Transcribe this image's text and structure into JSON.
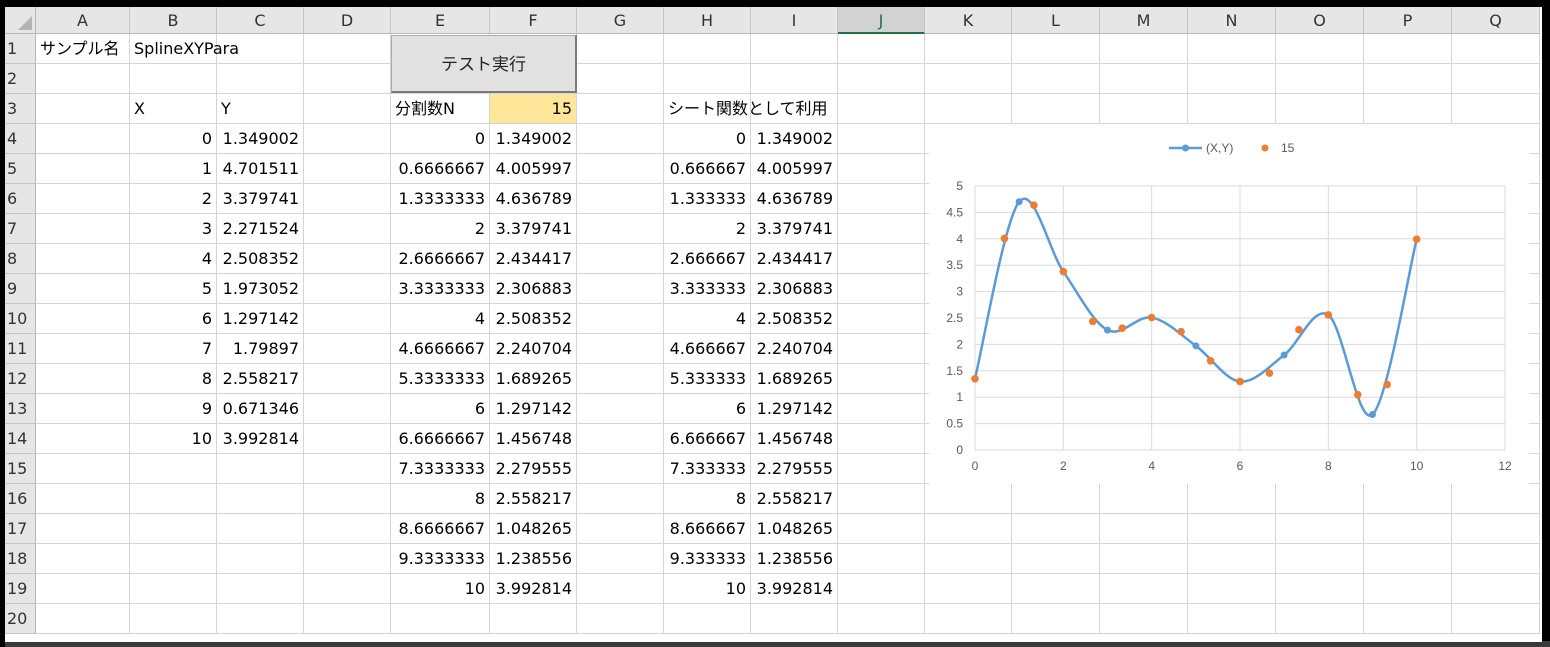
{
  "columns": [
    "A",
    "B",
    "C",
    "D",
    "E",
    "F",
    "G",
    "H",
    "I",
    "J",
    "K",
    "L",
    "M",
    "N",
    "O",
    "P",
    "Q"
  ],
  "selected_column": "J",
  "rows": [
    "1",
    "2",
    "3",
    "4",
    "5",
    "6",
    "7",
    "8",
    "9",
    "10",
    "11",
    "12",
    "13",
    "14",
    "15",
    "16",
    "17",
    "18",
    "19",
    "20"
  ],
  "cells": {
    "A1": "サンプル名",
    "B1": "SplineXYPara",
    "B3": "X",
    "C3": "Y",
    "E3": "分割数N",
    "F3": "15",
    "H3": "シート関数として利用",
    "B": [
      "0",
      "1",
      "2",
      "3",
      "4",
      "5",
      "6",
      "7",
      "8",
      "9",
      "10"
    ],
    "C": [
      "1.349002",
      "4.701511",
      "3.379741",
      "2.271524",
      "2.508352",
      "1.973052",
      "1.297142",
      "1.79897",
      "2.558217",
      "0.671346",
      "3.992814"
    ],
    "E": [
      "0",
      "0.6666667",
      "1.3333333",
      "2",
      "2.6666667",
      "3.3333333",
      "4",
      "4.6666667",
      "5.3333333",
      "6",
      "6.6666667",
      "7.3333333",
      "8",
      "8.6666667",
      "9.3333333",
      "10"
    ],
    "F": [
      "1.349002",
      "4.005997",
      "4.636789",
      "3.379741",
      "2.434417",
      "2.306883",
      "2.508352",
      "2.240704",
      "1.689265",
      "1.297142",
      "1.456748",
      "2.279555",
      "2.558217",
      "1.048265",
      "1.238556",
      "3.992814"
    ],
    "H": [
      "0",
      "0.666667",
      "1.333333",
      "2",
      "2.666667",
      "3.333333",
      "4",
      "4.666667",
      "5.333333",
      "6",
      "6.666667",
      "7.333333",
      "8",
      "8.666667",
      "9.333333",
      "10"
    ],
    "I": [
      "1.349002",
      "4.005997",
      "4.636789",
      "3.379741",
      "2.434417",
      "2.306883",
      "2.508352",
      "2.240704",
      "1.689265",
      "1.297142",
      "1.456748",
      "2.279555",
      "2.558217",
      "1.048265",
      "1.238556",
      "3.992814"
    ]
  },
  "button": {
    "label": "テスト実行"
  },
  "colors": {
    "series_line": "#5b9bd5",
    "series_points": "#ed7d31",
    "highlight": "#ffe699"
  },
  "chart_data": {
    "type": "scatter",
    "xlim": [
      0,
      12
    ],
    "ylim": [
      0,
      5
    ],
    "x_ticks": [
      "0",
      "2",
      "4",
      "6",
      "8",
      "10",
      "12"
    ],
    "y_ticks": [
      "0",
      "0.5",
      "1",
      "1.5",
      "2",
      "2.5",
      "3",
      "3.5",
      "4",
      "4.5",
      "5"
    ],
    "grid": true,
    "legend_position": "top",
    "series": [
      {
        "name": "(X,Y)",
        "style": "smooth-line-with-markers",
        "x": [
          0,
          1,
          2,
          3,
          4,
          5,
          6,
          7,
          8,
          9,
          10
        ],
        "y": [
          1.349002,
          4.701511,
          3.379741,
          2.271524,
          2.508352,
          1.973052,
          1.297142,
          1.79897,
          2.558217,
          0.671346,
          3.992814
        ]
      },
      {
        "name": "15",
        "style": "markers",
        "x": [
          0,
          0.6666667,
          1.3333333,
          2,
          2.6666667,
          3.3333333,
          4,
          4.6666667,
          5.3333333,
          6,
          6.6666667,
          7.3333333,
          8,
          8.6666667,
          9.3333333,
          10
        ],
        "y": [
          1.349002,
          4.005997,
          4.636789,
          3.379741,
          2.434417,
          2.306883,
          2.508352,
          2.240704,
          1.689265,
          1.297142,
          1.456748,
          2.279555,
          2.558217,
          1.048265,
          1.238556,
          3.992814
        ]
      }
    ]
  }
}
